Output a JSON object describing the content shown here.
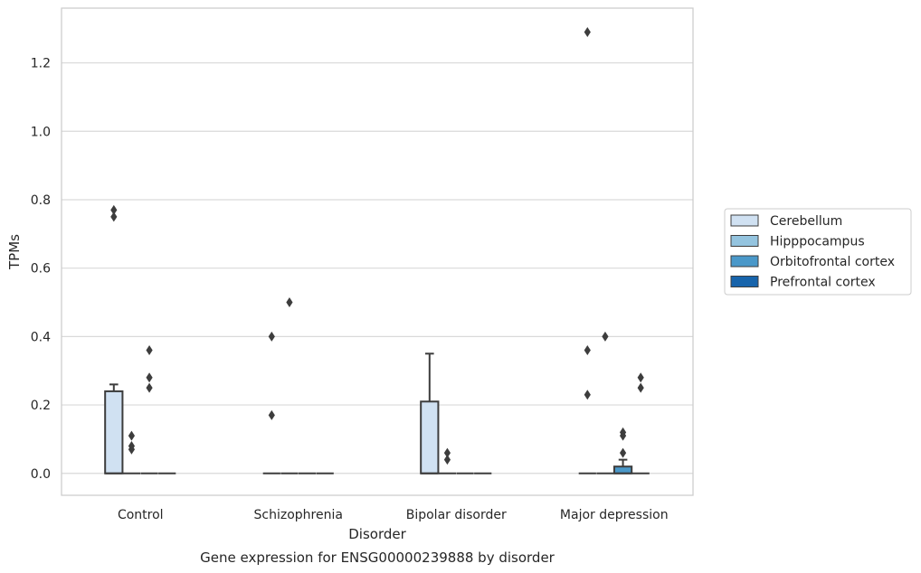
{
  "chart_data": {
    "type": "box",
    "title": "",
    "caption": "Gene expression for ENSG00000239888 by disorder",
    "xlabel": "Disorder",
    "ylabel": "TPMs",
    "ylim": [
      -0.064,
      1.36
    ],
    "yticks": [
      "0.0",
      "0.2",
      "0.4",
      "0.6",
      "0.8",
      "1.0",
      "1.2"
    ],
    "categories": [
      "Control",
      "Schizophrenia",
      "Bipolar disorder",
      "Major depression"
    ],
    "grid": true,
    "legend_position": "right",
    "series": [
      {
        "name": "Cerebellum",
        "color": "#d0e1f2",
        "boxes": [
          {
            "q1": 0,
            "median": 0,
            "q3": 0.24,
            "whislo": 0,
            "whishi": 0.26,
            "fliers": [
              0.75,
              0.77
            ]
          },
          {
            "q1": 0,
            "median": 0,
            "q3": 0,
            "whislo": 0,
            "whishi": 0,
            "fliers": [
              0.17,
              0.4
            ]
          },
          {
            "q1": 0,
            "median": 0,
            "q3": 0.21,
            "whislo": 0,
            "whishi": 0.35,
            "fliers": []
          },
          {
            "q1": 0,
            "median": 0,
            "q3": 0,
            "whislo": 0,
            "whishi": 0,
            "fliers": [
              0.23,
              0.36,
              1.29
            ]
          }
        ]
      },
      {
        "name": "Hipppocampus",
        "color": "#94c4df",
        "boxes": [
          {
            "q1": 0,
            "median": 0,
            "q3": 0,
            "whislo": 0,
            "whishi": 0,
            "fliers": [
              0.07,
              0.08,
              0.11
            ]
          },
          {
            "q1": 0,
            "median": 0,
            "q3": 0,
            "whislo": 0,
            "whishi": 0,
            "fliers": [
              0.5
            ]
          },
          {
            "q1": 0,
            "median": 0,
            "q3": 0,
            "whislo": 0,
            "whishi": 0,
            "fliers": [
              0.04,
              0.06
            ]
          },
          {
            "q1": 0,
            "median": 0,
            "q3": 0,
            "whislo": 0,
            "whishi": 0,
            "fliers": [
              0.4
            ]
          }
        ]
      },
      {
        "name": "Orbitofrontal cortex",
        "color": "#4a98c9",
        "boxes": [
          {
            "q1": 0,
            "median": 0,
            "q3": 0,
            "whislo": 0,
            "whishi": 0,
            "fliers": [
              0.25,
              0.28,
              0.36
            ]
          },
          {
            "q1": 0,
            "median": 0,
            "q3": 0,
            "whislo": 0,
            "whishi": 0,
            "fliers": []
          },
          {
            "q1": 0,
            "median": 0,
            "q3": 0,
            "whislo": 0,
            "whishi": 0,
            "fliers": []
          },
          {
            "q1": 0,
            "median": 0,
            "q3": 0.02,
            "whislo": 0,
            "whishi": 0.04,
            "fliers": [
              0.06,
              0.11,
              0.12
            ]
          }
        ]
      },
      {
        "name": "Prefrontal cortex",
        "color": "#1764ab",
        "boxes": [
          {
            "q1": 0,
            "median": 0,
            "q3": 0,
            "whislo": 0,
            "whishi": 0,
            "fliers": []
          },
          {
            "q1": 0,
            "median": 0,
            "q3": 0,
            "whislo": 0,
            "whishi": 0,
            "fliers": []
          },
          {
            "q1": 0,
            "median": 0,
            "q3": 0,
            "whislo": 0,
            "whishi": 0,
            "fliers": []
          },
          {
            "q1": 0,
            "median": 0,
            "q3": 0,
            "whislo": 0,
            "whishi": 0,
            "fliers": [
              0.25,
              0.28
            ]
          }
        ]
      }
    ]
  }
}
